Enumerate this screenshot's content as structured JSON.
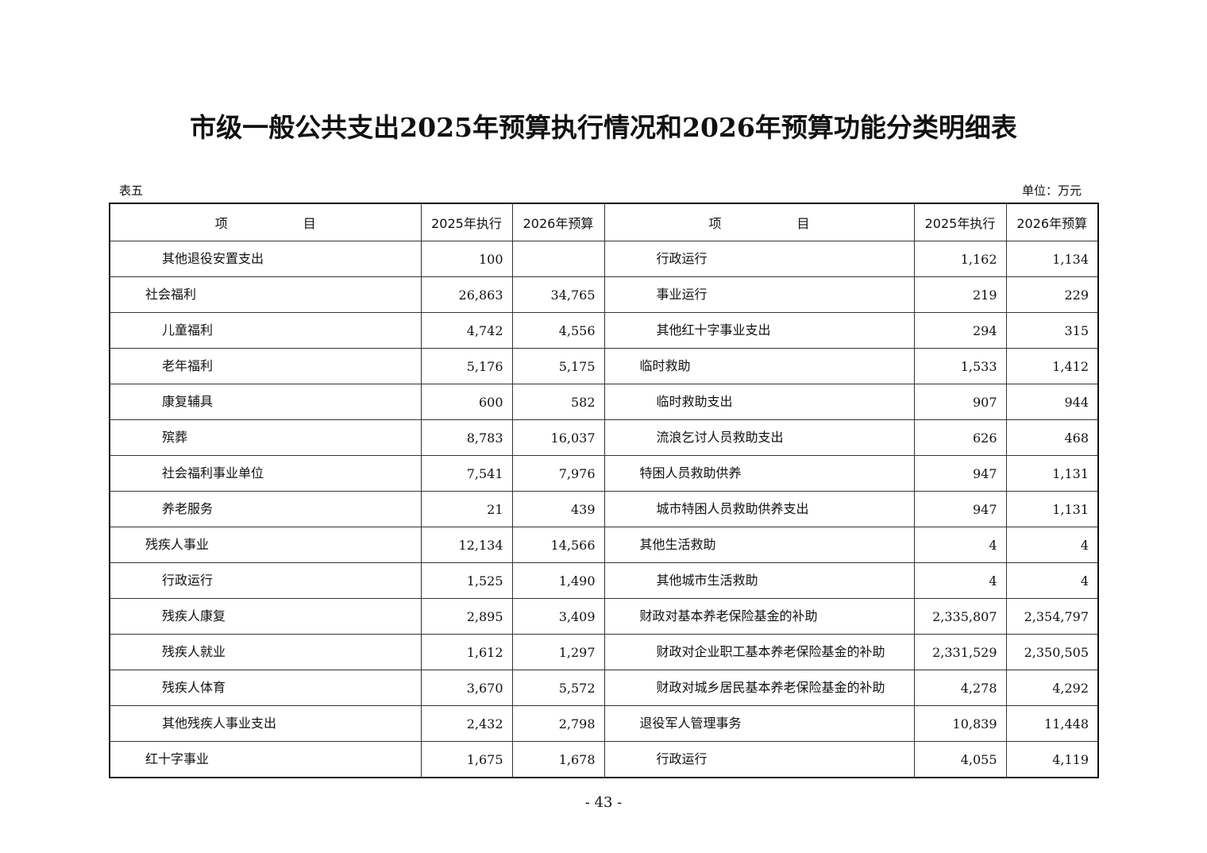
{
  "title": "市级一般公共支出2025年预算执行情况和2026年预算功能分类明细表",
  "table_no": "表五",
  "unit": "单位：万元",
  "headers": {
    "item_a": "项",
    "item_b": "目",
    "exec": "2025年执行",
    "budget": "2026年预算"
  },
  "left_rows": [
    {
      "name": "其他退役安置支出",
      "level": 2,
      "exec": "100",
      "budget": ""
    },
    {
      "name": "社会福利",
      "level": 1,
      "exec": "26,863",
      "budget": "34,765"
    },
    {
      "name": "儿童福利",
      "level": 2,
      "exec": "4,742",
      "budget": "4,556"
    },
    {
      "name": "老年福利",
      "level": 2,
      "exec": "5,176",
      "budget": "5,175"
    },
    {
      "name": "康复辅具",
      "level": 2,
      "exec": "600",
      "budget": "582"
    },
    {
      "name": "殡葬",
      "level": 2,
      "exec": "8,783",
      "budget": "16,037"
    },
    {
      "name": "社会福利事业单位",
      "level": 2,
      "exec": "7,541",
      "budget": "7,976"
    },
    {
      "name": "养老服务",
      "level": 2,
      "exec": "21",
      "budget": "439"
    },
    {
      "name": "残疾人事业",
      "level": 1,
      "exec": "12,134",
      "budget": "14,566"
    },
    {
      "name": "行政运行",
      "level": 2,
      "exec": "1,525",
      "budget": "1,490"
    },
    {
      "name": "残疾人康复",
      "level": 2,
      "exec": "2,895",
      "budget": "3,409"
    },
    {
      "name": "残疾人就业",
      "level": 2,
      "exec": "1,612",
      "budget": "1,297"
    },
    {
      "name": "残疾人体育",
      "level": 2,
      "exec": "3,670",
      "budget": "5,572"
    },
    {
      "name": "其他残疾人事业支出",
      "level": 2,
      "exec": "2,432",
      "budget": "2,798"
    },
    {
      "name": "红十字事业",
      "level": 1,
      "exec": "1,675",
      "budget": "1,678"
    }
  ],
  "right_rows": [
    {
      "name": "行政运行",
      "level": 2,
      "exec": "1,162",
      "budget": "1,134"
    },
    {
      "name": "事业运行",
      "level": 2,
      "exec": "219",
      "budget": "229"
    },
    {
      "name": "其他红十字事业支出",
      "level": 2,
      "exec": "294",
      "budget": "315"
    },
    {
      "name": "临时救助",
      "level": 1,
      "exec": "1,533",
      "budget": "1,412"
    },
    {
      "name": "临时救助支出",
      "level": 2,
      "exec": "907",
      "budget": "944"
    },
    {
      "name": "流浪乞讨人员救助支出",
      "level": 2,
      "exec": "626",
      "budget": "468"
    },
    {
      "name": "特困人员救助供养",
      "level": 1,
      "exec": "947",
      "budget": "1,131"
    },
    {
      "name": "城市特困人员救助供养支出",
      "level": 2,
      "exec": "947",
      "budget": "1,131"
    },
    {
      "name": "其他生活救助",
      "level": 1,
      "exec": "4",
      "budget": "4"
    },
    {
      "name": "其他城市生活救助",
      "level": 2,
      "exec": "4",
      "budget": "4"
    },
    {
      "name": "财政对基本养老保险基金的补助",
      "level": 1,
      "exec": "2,335,807",
      "budget": "2,354,797"
    },
    {
      "name": "财政对企业职工基本养老保险基金的补助",
      "level": 2,
      "exec": "2,331,529",
      "budget": "2,350,505"
    },
    {
      "name": "财政对城乡居民基本养老保险基金的补助",
      "level": 2,
      "exec": "4,278",
      "budget": "4,292"
    },
    {
      "name": "退役军人管理事务",
      "level": 1,
      "exec": "10,839",
      "budget": "11,448"
    },
    {
      "name": "行政运行",
      "level": 2,
      "exec": "4,055",
      "budget": "4,119"
    }
  ],
  "page_number": "- 43 -"
}
